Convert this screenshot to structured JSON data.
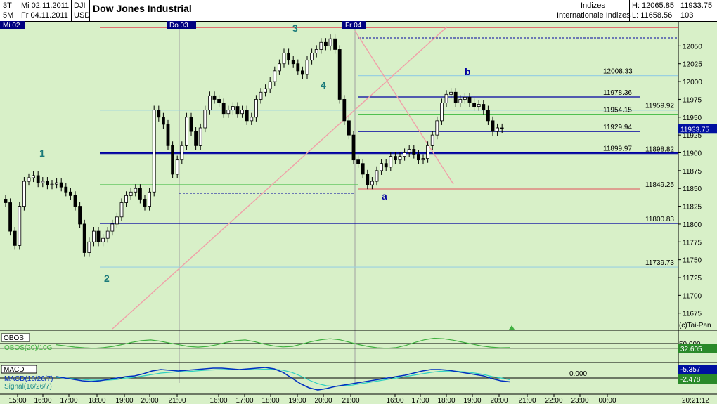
{
  "header": {
    "timeframe_top": "3T",
    "timeframe_bottom": "5M",
    "date_from": "Mi 02.11.2011",
    "date_to": "Fr 04.11.2011",
    "symbol": "DJI",
    "currency": "USD",
    "title": "Dow Jones Industrial",
    "category": "Indizes",
    "subcategory": "Internationale Indizes",
    "high": "H: 12065.85",
    "low": "L: 11658.56",
    "price_box_1": "11933.75",
    "price_box_2": "103"
  },
  "colors": {
    "background": "#d8f0c8",
    "candle": "#000000",
    "hline_blue": "#0000a0",
    "hline_light": "#9ad0e0",
    "hline_red": "#e07070",
    "hline_green": "#50c050",
    "trend_pink": "#f0a0a8",
    "wave_label": "#1a7a7a",
    "obos_line": "#40b040",
    "macd_line": "#0030c0",
    "signal_line": "#30d0c0"
  },
  "chart_data": [
    {
      "type": "line",
      "chart_kind": "candlestick",
      "title": "Dow Jones Industrial",
      "ylim": [
        11655,
        12075
      ],
      "y_ticks": [
        11675,
        11700,
        11725,
        11750,
        11775,
        11800,
        11825,
        11850,
        11875,
        11900,
        11925,
        11950,
        11975,
        12000,
        12025,
        12050
      ],
      "x_tick_labels": [
        "15:00",
        "16:00",
        "17:00",
        "18:00",
        "19:00",
        "20:00",
        "21:00",
        "16:00",
        "17:00",
        "18:00",
        "19:00",
        "20:00",
        "21:00",
        "16:00",
        "17:00",
        "18:00",
        "19:00",
        "20:00",
        "21:00",
        "22:00",
        "23:00",
        "00:00"
      ],
      "session_labels": [
        "Mi 02",
        "Do 03",
        "Fr 04"
      ],
      "current_price": "11933.75",
      "time_label": "20:21:12",
      "copyright": "(c)Tai-Pan",
      "wave_labels": [
        "1",
        "2",
        "3",
        "4",
        "a",
        "b"
      ],
      "level_labels": [
        "12008.33",
        "11978.36",
        "11959.92",
        "11954.15",
        "11929.94",
        "11899.97",
        "11898.82",
        "11849.25",
        "11800.83",
        "11739.73"
      ],
      "closes": [
        11830,
        11790,
        11770,
        11825,
        11860,
        11865,
        11868,
        11858,
        11860,
        11855,
        11856,
        11858,
        11852,
        11845,
        11840,
        11825,
        11800,
        11760,
        11775,
        11790,
        11775,
        11780,
        11790,
        11800,
        11810,
        11830,
        11840,
        11845,
        11850,
        11835,
        11825,
        11845,
        11960,
        11950,
        11940,
        11910,
        11870,
        11890,
        11910,
        11950,
        11930,
        11910,
        11935,
        11960,
        11980,
        11975,
        11970,
        11955,
        11960,
        11965,
        11955,
        11960,
        11945,
        11950,
        11975,
        11985,
        11990,
        12000,
        12015,
        12025,
        12040,
        12030,
        12025,
        12015,
        12010,
        12030,
        12040,
        12045,
        12055,
        12050,
        12060,
        12045,
        11975,
        11945,
        11925,
        11890,
        11885,
        11870,
        11855,
        11860,
        11875,
        11885,
        11880,
        11895,
        11890,
        11895,
        11900,
        11905,
        11898,
        11890,
        11892,
        11910,
        11925,
        11945,
        11970,
        11982,
        11985,
        11970,
        11975,
        11978,
        11970,
        11965,
        11968,
        11960,
        11945,
        11930,
        11935,
        11934
      ]
    },
    {
      "type": "line",
      "name": "OBOS(20)/10G",
      "panel_label": "OBOS",
      "level_label": "50.000",
      "value_label": "32.605",
      "values": [
        45,
        40,
        35,
        32,
        30,
        33,
        38,
        46,
        55,
        62,
        65,
        60,
        52,
        45,
        38,
        35,
        38,
        45,
        55,
        62,
        65,
        58,
        48,
        40,
        36,
        38,
        48,
        58,
        66,
        70,
        66,
        56,
        46,
        38,
        32,
        30,
        33,
        42,
        55,
        66,
        72,
        70,
        64,
        56,
        48,
        40,
        35,
        32,
        32.6
      ]
    },
    {
      "type": "line",
      "name": "MACD(16/26/7)",
      "signal_name": "Signal(16/26/7)",
      "panel_label": "MACD",
      "level_label": "0.000",
      "value_label": "-5.357",
      "signal_value_label": "-2.478",
      "values": [
        2,
        0,
        -2,
        -4,
        -5,
        -4,
        -2,
        0,
        2,
        3,
        6,
        10,
        12,
        11,
        10,
        11,
        12,
        13,
        14,
        14,
        13,
        12,
        13,
        14,
        15,
        13,
        8,
        0,
        -8,
        -14,
        -17,
        -15,
        -12,
        -10,
        -8,
        -6,
        -4,
        -2,
        0,
        2,
        4,
        7,
        10,
        12,
        12,
        11,
        9,
        7,
        5,
        3,
        -1,
        -4,
        -5.357
      ],
      "signal": [
        1,
        0,
        -1,
        -2,
        -3,
        -3,
        -3,
        -2,
        0,
        1,
        3,
        5,
        7,
        8,
        9,
        9,
        10,
        11,
        11.5,
        12,
        12,
        12,
        12,
        12,
        12.5,
        12.5,
        11,
        8,
        3,
        -3,
        -8,
        -11,
        -12,
        -11,
        -10,
        -8,
        -6,
        -4,
        -2,
        0,
        2,
        4,
        6,
        8,
        9.5,
        10,
        9.5,
        8.5,
        7,
        5,
        2,
        0,
        -2.478
      ]
    }
  ]
}
